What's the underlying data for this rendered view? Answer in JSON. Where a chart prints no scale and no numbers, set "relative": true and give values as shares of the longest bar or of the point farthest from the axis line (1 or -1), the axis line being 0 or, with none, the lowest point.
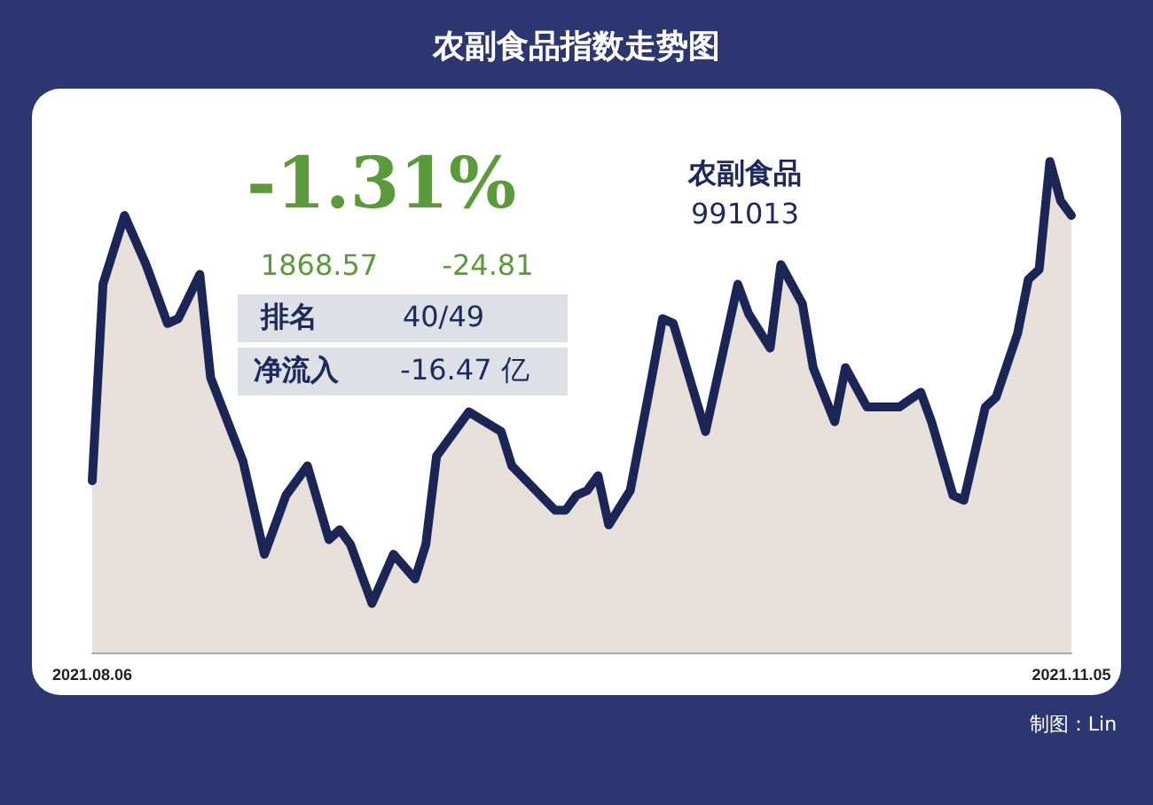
{
  "chart_data": {
    "type": "area",
    "title": "农副食品指数走势图",
    "relative": true,
    "x": [
      "2021-08-06",
      "2021-08-07",
      "2021-08-09",
      "2021-08-11",
      "2021-08-13",
      "2021-08-14",
      "2021-08-16",
      "2021-08-17",
      "2021-08-20",
      "2021-08-22",
      "2021-08-24",
      "2021-08-26",
      "2021-08-28",
      "2021-08-29",
      "2021-08-30",
      "2021-09-01",
      "2021-09-03",
      "2021-09-05",
      "2021-09-06",
      "2021-09-07",
      "2021-09-10",
      "2021-09-13",
      "2021-09-14",
      "2021-09-18",
      "2021-09-19",
      "2021-09-20",
      "2021-09-21",
      "2021-09-22",
      "2021-09-23",
      "2021-09-25",
      "2021-09-27",
      "2021-09-28",
      "2021-09-29",
      "2021-10-02",
      "2021-10-05",
      "2021-10-06",
      "2021-10-08",
      "2021-10-09",
      "2021-10-11",
      "2021-10-12",
      "2021-10-14",
      "2021-10-15",
      "2021-10-17",
      "2021-10-20",
      "2021-10-22",
      "2021-10-23",
      "2021-10-25",
      "2021-10-26",
      "2021-10-28",
      "2021-10-29",
      "2021-10-31",
      "2021-11-01",
      "2021-11-02",
      "2021-11-03",
      "2021-11-04",
      "2021-11-05"
    ],
    "series": [
      {
        "color": "#1b2657",
        "values": [
          0.35,
          0.75,
          0.89,
          0.79,
          0.67,
          0.68,
          0.77,
          0.56,
          0.39,
          0.2,
          0.32,
          0.38,
          0.23,
          0.25,
          0.22,
          0.1,
          0.2,
          0.15,
          0.22,
          0.4,
          0.49,
          0.45,
          0.38,
          0.29,
          0.29,
          0.32,
          0.33,
          0.36,
          0.26,
          0.33,
          0.56,
          0.68,
          0.67,
          0.45,
          0.75,
          0.69,
          0.62,
          0.79,
          0.71,
          0.58,
          0.47,
          0.58,
          0.5,
          0.5,
          0.53,
          0.47,
          0.32,
          0.31,
          0.5,
          0.52,
          0.65,
          0.76,
          0.78,
          1,
          0.92,
          0.89
        ]
      }
    ],
    "xlim": [
      "2021-08-06",
      "2021-11-05"
    ],
    "xticks": [
      {
        "value": "2021-08-06",
        "label": "2021.08.06"
      },
      {
        "value": "2021-11-05",
        "label": "2021.11.05"
      }
    ],
    "grid": false,
    "marker": "none",
    "line_style": "solid",
    "annotations": [
      "-1.31%",
      "1868.57",
      "-24.81",
      "排名",
      "40/49",
      "净流入",
      "-16.47 亿",
      "农副食品",
      "991013",
      "制图：Lin"
    ]
  }
}
